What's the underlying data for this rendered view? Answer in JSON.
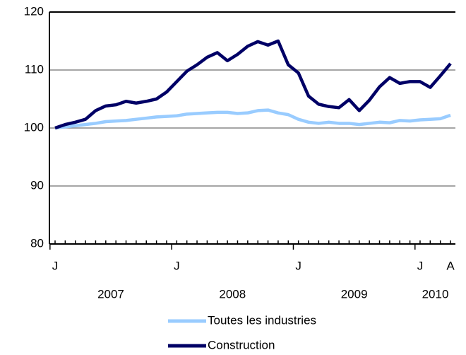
{
  "chart_data": {
    "type": "line",
    "categories": [
      "J",
      null,
      null,
      null,
      null,
      null,
      null,
      null,
      null,
      null,
      null,
      null,
      "J",
      null,
      null,
      null,
      null,
      null,
      null,
      null,
      null,
      null,
      null,
      null,
      "J",
      null,
      null,
      null,
      null,
      null,
      null,
      null,
      null,
      null,
      null,
      null,
      "J",
      null,
      null,
      "A"
    ],
    "year_labels": [
      "2007",
      "2008",
      "2009",
      "2010"
    ],
    "series": [
      {
        "name": "Toutes les industries",
        "color": "#99ccff",
        "values": [
          100,
          100.2,
          100.4,
          100.6,
          100.8,
          101.1,
          101.2,
          101.3,
          101.5,
          101.7,
          101.9,
          102,
          102.1,
          102.4,
          102.5,
          102.6,
          102.7,
          102.7,
          102.5,
          102.6,
          103,
          103.1,
          102.6,
          102.3,
          101.5,
          101,
          100.8,
          101,
          100.8,
          100.8,
          100.6,
          100.8,
          101,
          100.9,
          101.3,
          101.2,
          101.4,
          101.5,
          101.6,
          102.2
        ]
      },
      {
        "name": "Construction",
        "color": "#000066",
        "values": [
          100,
          100.6,
          101,
          101.5,
          103,
          103.8,
          104,
          104.6,
          104.3,
          104.6,
          105,
          106.2,
          108,
          109.8,
          110.9,
          112.2,
          113,
          111.6,
          112.7,
          114.1,
          114.9,
          114.3,
          115,
          110.9,
          109.5,
          105.5,
          104.1,
          103.7,
          103.5,
          104.9,
          103,
          104.8,
          107.1,
          108.7,
          107.7,
          108,
          108,
          107,
          109,
          111.1
        ]
      }
    ],
    "ylim": [
      80,
      120
    ],
    "yticks": [
      80,
      90,
      100,
      110,
      120
    ],
    "grid": true
  }
}
